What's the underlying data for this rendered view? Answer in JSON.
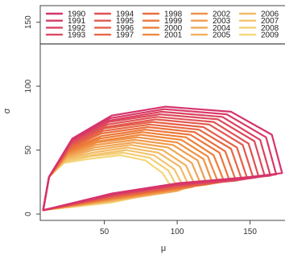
{
  "chart_data": {
    "type": "line",
    "xlabel": "μ",
    "ylabel": "σ",
    "xlim": [
      6,
      174
    ],
    "ylim": [
      -5,
      163
    ],
    "x_ticks": [
      50,
      100,
      150
    ],
    "y_ticks": [
      0,
      50,
      100,
      150
    ],
    "grid": false,
    "legend_position": "top",
    "legend_rule_y": 133,
    "palette": {
      "start": "#d6336c",
      "mid": "#ed7a35",
      "end": "#f4d77a"
    },
    "series": [
      {
        "name": "1990",
        "values": [
          [
            8,
            3
          ],
          [
            55,
            16
          ],
          [
            100,
            24
          ],
          [
            150,
            29
          ],
          [
            172,
            32
          ],
          [
            165,
            62
          ],
          [
            137,
            80
          ],
          [
            92,
            84
          ],
          [
            55,
            77
          ],
          [
            28,
            59
          ],
          [
            12,
            29
          ],
          [
            8,
            3
          ]
        ]
      },
      {
        "name": "1991",
        "values": [
          [
            8,
            3
          ],
          [
            55,
            15
          ],
          [
            100,
            23
          ],
          [
            150,
            28
          ],
          [
            168,
            31
          ],
          [
            161,
            60
          ],
          [
            134,
            78
          ],
          [
            91,
            82
          ],
          [
            54,
            75
          ],
          [
            28,
            58
          ],
          [
            12,
            29
          ],
          [
            8,
            3
          ]
        ]
      },
      {
        "name": "1992",
        "values": [
          [
            8,
            3
          ],
          [
            55,
            15
          ],
          [
            100,
            23
          ],
          [
            145,
            28
          ],
          [
            164,
            30
          ],
          [
            157,
            58
          ],
          [
            131,
            76
          ],
          [
            89,
            80
          ],
          [
            53,
            73
          ],
          [
            27,
            57
          ],
          [
            12,
            29
          ],
          [
            8,
            3
          ]
        ]
      },
      {
        "name": "1993",
        "values": [
          [
            8,
            3
          ],
          [
            55,
            15
          ],
          [
            100,
            23
          ],
          [
            145,
            27
          ],
          [
            160,
            30
          ],
          [
            153,
            57
          ],
          [
            128,
            74
          ],
          [
            88,
            78
          ],
          [
            53,
            72
          ],
          [
            27,
            56
          ],
          [
            12,
            29
          ],
          [
            8,
            3
          ]
        ]
      },
      {
        "name": "1994",
        "values": [
          [
            8,
            3
          ],
          [
            55,
            14
          ],
          [
            100,
            22
          ],
          [
            140,
            27
          ],
          [
            156,
            29
          ],
          [
            149,
            55
          ],
          [
            125,
            72
          ],
          [
            86,
            76
          ],
          [
            52,
            70
          ],
          [
            27,
            55
          ],
          [
            12,
            29
          ],
          [
            8,
            3
          ]
        ]
      },
      {
        "name": "1995",
        "values": [
          [
            8,
            3
          ],
          [
            55,
            14
          ],
          [
            100,
            22
          ],
          [
            140,
            26
          ],
          [
            152,
            29
          ],
          [
            145,
            54
          ],
          [
            122,
            70
          ],
          [
            85,
            74
          ],
          [
            51,
            68
          ],
          [
            27,
            54
          ],
          [
            12,
            29
          ],
          [
            8,
            3
          ]
        ]
      },
      {
        "name": "1996",
        "values": [
          [
            8,
            3
          ],
          [
            55,
            14
          ],
          [
            100,
            21
          ],
          [
            135,
            26
          ],
          [
            148,
            28
          ],
          [
            141,
            52
          ],
          [
            118,
            68
          ],
          [
            83,
            72
          ],
          [
            50,
            67
          ],
          [
            26,
            53
          ],
          [
            12,
            29
          ],
          [
            8,
            3
          ]
        ]
      },
      {
        "name": "1997",
        "values": [
          [
            8,
            3
          ],
          [
            55,
            13
          ],
          [
            100,
            21
          ],
          [
            130,
            25
          ],
          [
            144,
            28
          ],
          [
            137,
            51
          ],
          [
            115,
            66
          ],
          [
            81,
            70
          ],
          [
            49,
            65
          ],
          [
            26,
            52
          ],
          [
            12,
            29
          ],
          [
            8,
            3
          ]
        ]
      },
      {
        "name": "1998",
        "values": [
          [
            8,
            3
          ],
          [
            55,
            13
          ],
          [
            100,
            21
          ],
          [
            130,
            25
          ],
          [
            140,
            27
          ],
          [
            133,
            49
          ],
          [
            112,
            64
          ],
          [
            80,
            68
          ],
          [
            48,
            63
          ],
          [
            26,
            51
          ],
          [
            12,
            29
          ],
          [
            8,
            3
          ]
        ]
      },
      {
        "name": "1999",
        "values": [
          [
            8,
            3
          ],
          [
            55,
            13
          ],
          [
            100,
            20
          ],
          [
            125,
            24
          ],
          [
            136,
            26
          ],
          [
            129,
            48
          ],
          [
            109,
            62
          ],
          [
            78,
            66
          ],
          [
            48,
            61
          ],
          [
            26,
            50
          ],
          [
            12,
            29
          ],
          [
            8,
            3
          ]
        ]
      },
      {
        "name": "2000",
        "values": [
          [
            8,
            3
          ],
          [
            55,
            12
          ],
          [
            100,
            20
          ],
          [
            120,
            24
          ],
          [
            132,
            26
          ],
          [
            125,
            46
          ],
          [
            106,
            60
          ],
          [
            76,
            64
          ],
          [
            47,
            59
          ],
          [
            25,
            49
          ],
          [
            12,
            29
          ],
          [
            8,
            3
          ]
        ]
      },
      {
        "name": "2001",
        "values": [
          [
            8,
            3
          ],
          [
            55,
            12
          ],
          [
            100,
            20
          ],
          [
            120,
            23
          ],
          [
            128,
            25
          ],
          [
            121,
            45
          ],
          [
            103,
            58
          ],
          [
            75,
            62
          ],
          [
            46,
            57
          ],
          [
            25,
            48
          ],
          [
            12,
            29
          ],
          [
            8,
            3
          ]
        ]
      },
      {
        "name": "2002",
        "values": [
          [
            8,
            3
          ],
          [
            55,
            12
          ],
          [
            100,
            19
          ],
          [
            115,
            23
          ],
          [
            124,
            25
          ],
          [
            118,
            43
          ],
          [
            100,
            56
          ],
          [
            73,
            60
          ],
          [
            45,
            56
          ],
          [
            25,
            47
          ],
          [
            12,
            29
          ],
          [
            8,
            3
          ]
        ]
      },
      {
        "name": "2003",
        "values": [
          [
            8,
            3
          ],
          [
            55,
            11
          ],
          [
            100,
            19
          ],
          [
            110,
            22
          ],
          [
            120,
            24
          ],
          [
            114,
            42
          ],
          [
            97,
            54
          ],
          [
            71,
            58
          ],
          [
            44,
            54
          ],
          [
            24,
            46
          ],
          [
            12,
            29
          ],
          [
            8,
            3
          ]
        ]
      },
      {
        "name": "2004",
        "values": [
          [
            8,
            3
          ],
          [
            55,
            11
          ],
          [
            100,
            19
          ],
          [
            110,
            21
          ],
          [
            116,
            24
          ],
          [
            110,
            40
          ],
          [
            94,
            52
          ],
          [
            70,
            56
          ],
          [
            43,
            52
          ],
          [
            24,
            45
          ],
          [
            12,
            29
          ],
          [
            8,
            3
          ]
        ]
      },
      {
        "name": "2005",
        "values": [
          [
            8,
            3
          ],
          [
            55,
            11
          ],
          [
            100,
            18
          ],
          [
            105,
            21
          ],
          [
            112,
            23
          ],
          [
            106,
            38
          ],
          [
            90,
            50
          ],
          [
            68,
            54
          ],
          [
            42,
            50
          ],
          [
            24,
            44
          ],
          [
            12,
            29
          ],
          [
            8,
            3
          ]
        ]
      },
      {
        "name": "2006",
        "values": [
          [
            8,
            3
          ],
          [
            55,
            10
          ],
          [
            100,
            18
          ],
          [
            105,
            20
          ],
          [
            108,
            22
          ],
          [
            102,
            37
          ],
          [
            87,
            48
          ],
          [
            66,
            52
          ],
          [
            42,
            48
          ],
          [
            23,
            43
          ],
          [
            12,
            29
          ],
          [
            8,
            3
          ]
        ]
      },
      {
        "name": "2007",
        "values": [
          [
            8,
            3
          ],
          [
            55,
            10
          ],
          [
            90,
            17
          ],
          [
            104,
            22
          ],
          [
            98,
            35
          ],
          [
            84,
            46
          ],
          [
            65,
            50
          ],
          [
            41,
            46
          ],
          [
            23,
            42
          ],
          [
            12,
            29
          ],
          [
            8,
            3
          ]
        ]
      },
      {
        "name": "2008",
        "values": [
          [
            8,
            3
          ],
          [
            55,
            10
          ],
          [
            90,
            17
          ],
          [
            100,
            21
          ],
          [
            94,
            34
          ],
          [
            81,
            44
          ],
          [
            63,
            48
          ],
          [
            40,
            45
          ],
          [
            23,
            41
          ],
          [
            12,
            29
          ],
          [
            8,
            3
          ]
        ]
      },
      {
        "name": "2009",
        "values": [
          [
            8,
            3
          ],
          [
            55,
            9
          ],
          [
            88,
            17
          ],
          [
            96,
            21
          ],
          [
            90,
            32
          ],
          [
            78,
            42
          ],
          [
            61,
            46
          ],
          [
            39,
            43
          ],
          [
            22,
            40
          ],
          [
            12,
            29
          ],
          [
            8,
            3
          ]
        ]
      }
    ]
  }
}
